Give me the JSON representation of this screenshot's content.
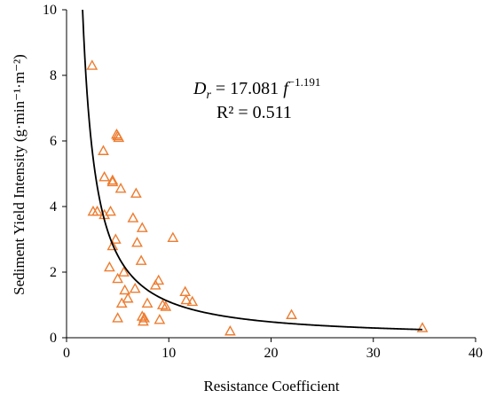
{
  "chart_data": {
    "type": "scatter",
    "title": "",
    "xlabel": "Resistance Coefficient",
    "ylabel": "Sediment Yield Intensity (g·min⁻¹·m⁻²)",
    "xlim": [
      0,
      40
    ],
    "ylim": [
      0,
      10
    ],
    "x_ticks": [
      "0",
      "10",
      "20",
      "30",
      "40"
    ],
    "y_ticks": [
      "0",
      "2",
      "4",
      "6",
      "8",
      "10"
    ],
    "grid": false,
    "marker": "open-triangle",
    "colors": {
      "marker": "#ED7D31",
      "fit_line": "#000000",
      "axis": "#000000"
    },
    "points": [
      {
        "x": 2.5,
        "y": 8.3
      },
      {
        "x": 2.6,
        "y": 3.85
      },
      {
        "x": 3.0,
        "y": 3.85
      },
      {
        "x": 3.6,
        "y": 5.7
      },
      {
        "x": 3.7,
        "y": 4.9
      },
      {
        "x": 3.7,
        "y": 3.75
      },
      {
        "x": 4.2,
        "y": 2.15
      },
      {
        "x": 4.3,
        "y": 3.85
      },
      {
        "x": 4.5,
        "y": 4.8
      },
      {
        "x": 4.5,
        "y": 4.75
      },
      {
        "x": 4.5,
        "y": 2.8
      },
      {
        "x": 4.8,
        "y": 3.0
      },
      {
        "x": 4.9,
        "y": 6.2
      },
      {
        "x": 5.0,
        "y": 6.15
      },
      {
        "x": 5.1,
        "y": 6.1
      },
      {
        "x": 5.0,
        "y": 1.8
      },
      {
        "x": 5.0,
        "y": 0.6
      },
      {
        "x": 5.3,
        "y": 4.55
      },
      {
        "x": 5.4,
        "y": 1.05
      },
      {
        "x": 5.6,
        "y": 2.0
      },
      {
        "x": 5.7,
        "y": 1.45
      },
      {
        "x": 6.0,
        "y": 1.2
      },
      {
        "x": 6.5,
        "y": 3.65
      },
      {
        "x": 6.8,
        "y": 4.4
      },
      {
        "x": 6.7,
        "y": 1.5
      },
      {
        "x": 6.9,
        "y": 2.9
      },
      {
        "x": 7.3,
        "y": 2.35
      },
      {
        "x": 7.4,
        "y": 3.35
      },
      {
        "x": 7.4,
        "y": 0.65
      },
      {
        "x": 7.5,
        "y": 0.5
      },
      {
        "x": 7.6,
        "y": 0.6
      },
      {
        "x": 7.9,
        "y": 1.05
      },
      {
        "x": 8.7,
        "y": 1.6
      },
      {
        "x": 9.0,
        "y": 1.75
      },
      {
        "x": 9.1,
        "y": 0.55
      },
      {
        "x": 9.4,
        "y": 1.0
      },
      {
        "x": 9.7,
        "y": 0.95
      },
      {
        "x": 10.4,
        "y": 3.05
      },
      {
        "x": 11.6,
        "y": 1.4
      },
      {
        "x": 11.7,
        "y": 1.15
      },
      {
        "x": 12.3,
        "y": 1.1
      },
      {
        "x": 16.0,
        "y": 0.2
      },
      {
        "x": 22.0,
        "y": 0.7
      },
      {
        "x": 34.8,
        "y": 0.3
      }
    ],
    "fit": {
      "equation_lhs": "D",
      "equation_lhs_sub": "r",
      "equation_mid": " = 17.081 ",
      "equation_var": "f",
      "equation_exp": "−1.191",
      "r2": "R² = 0.511",
      "coef": 17.081,
      "exp": -1.191
    }
  }
}
